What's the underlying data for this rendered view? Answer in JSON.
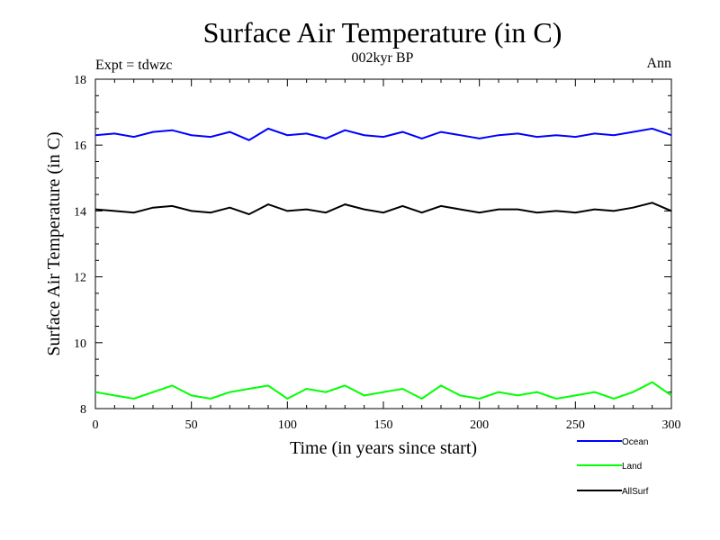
{
  "chart_data": {
    "type": "line",
    "title": "Surface Air Temperature (in C)",
    "subtitle": "002kyr BP",
    "top_left_label": "Expt = tdwzc",
    "top_right_label": "Ann",
    "xlabel": "Time (in years since start)",
    "ylabel": "Surface Air Temperature (in C)",
    "xlim": [
      0,
      300
    ],
    "ylim": [
      8,
      18
    ],
    "x_ticks": [
      0,
      50,
      100,
      150,
      200,
      250,
      300
    ],
    "y_ticks": [
      8,
      10,
      12,
      14,
      16,
      18
    ],
    "x_tick_labels": [
      "0",
      "50",
      "100",
      "150",
      "200",
      "250",
      "300"
    ],
    "y_tick_labels": [
      "8",
      "10",
      "12",
      "14",
      "16",
      "18"
    ],
    "grid": false,
    "legend_position": "bottom-right, below plot",
    "x": [
      0,
      10,
      20,
      30,
      40,
      50,
      60,
      70,
      80,
      90,
      100,
      110,
      120,
      130,
      140,
      150,
      160,
      170,
      180,
      190,
      200,
      210,
      220,
      230,
      240,
      250,
      260,
      270,
      280,
      290,
      300
    ],
    "series": [
      {
        "name": "Ocean",
        "color": "#0000ff",
        "values": [
          16.3,
          16.35,
          16.25,
          16.4,
          16.45,
          16.3,
          16.25,
          16.4,
          16.15,
          16.5,
          16.3,
          16.35,
          16.2,
          16.45,
          16.3,
          16.25,
          16.4,
          16.2,
          16.4,
          16.3,
          16.2,
          16.3,
          16.35,
          16.25,
          16.3,
          16.25,
          16.35,
          16.3,
          16.4,
          16.5,
          16.3
        ]
      },
      {
        "name": "Land",
        "color": "#00ff00",
        "values": [
          8.5,
          8.4,
          8.3,
          8.5,
          8.7,
          8.4,
          8.3,
          8.5,
          8.6,
          8.7,
          8.3,
          8.6,
          8.5,
          8.7,
          8.4,
          8.5,
          8.6,
          8.3,
          8.7,
          8.4,
          8.3,
          8.5,
          8.4,
          8.5,
          8.3,
          8.4,
          8.5,
          8.3,
          8.5,
          8.8,
          8.4
        ]
      },
      {
        "name": "AllSurf",
        "color": "#000000",
        "values": [
          14.05,
          14.0,
          13.95,
          14.1,
          14.15,
          14.0,
          13.95,
          14.1,
          13.9,
          14.2,
          14.0,
          14.05,
          13.95,
          14.2,
          14.05,
          13.95,
          14.15,
          13.95,
          14.15,
          14.05,
          13.95,
          14.05,
          14.05,
          13.95,
          14.0,
          13.95,
          14.05,
          14.0,
          14.1,
          14.25,
          14.0
        ]
      }
    ]
  }
}
